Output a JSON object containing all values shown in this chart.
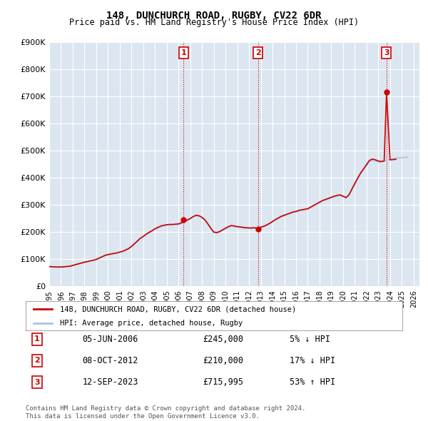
{
  "title": "148, DUNCHURCH ROAD, RUGBY, CV22 6DR",
  "subtitle": "Price paid vs. HM Land Registry's House Price Index (HPI)",
  "ylabel_ticks": [
    "£0",
    "£100K",
    "£200K",
    "£300K",
    "£400K",
    "£500K",
    "£600K",
    "£700K",
    "£800K",
    "£900K"
  ],
  "ylim": [
    0,
    900000
  ],
  "xlim_start": 1995.0,
  "xlim_end": 2026.5,
  "background_color": "#ffffff",
  "plot_bg_color": "#dce6f0",
  "grid_color": "#ffffff",
  "hpi_color": "#a8c4e0",
  "price_color": "#cc0000",
  "transaction_color": "#cc0000",
  "vline_color": "#cc0000",
  "legend_label_price": "148, DUNCHURCH ROAD, RUGBY, CV22 6DR (detached house)",
  "legend_label_hpi": "HPI: Average price, detached house, Rugby",
  "transactions": [
    {
      "num": 1,
      "date_x": 2006.43,
      "price": 245000,
      "label": "05-JUN-2006",
      "amount": "£245,000",
      "pct": "5% ↓ HPI"
    },
    {
      "num": 2,
      "date_x": 2012.77,
      "price": 210000,
      "label": "08-OCT-2012",
      "amount": "£210,000",
      "pct": "17% ↓ HPI"
    },
    {
      "num": 3,
      "date_x": 2023.7,
      "price": 715995,
      "label": "12-SEP-2023",
      "amount": "£715,995",
      "pct": "53% ↑ HPI"
    }
  ],
  "footnote1": "Contains HM Land Registry data © Crown copyright and database right 2024.",
  "footnote2": "This data is licensed under the Open Government Licence v3.0.",
  "hpi_data_x": [
    1995.0,
    1995.25,
    1995.5,
    1995.75,
    1996.0,
    1996.25,
    1996.5,
    1996.75,
    1997.0,
    1997.25,
    1997.5,
    1997.75,
    1998.0,
    1998.25,
    1998.5,
    1998.75,
    1999.0,
    1999.25,
    1999.5,
    1999.75,
    2000.0,
    2000.25,
    2000.5,
    2000.75,
    2001.0,
    2001.25,
    2001.5,
    2001.75,
    2002.0,
    2002.25,
    2002.5,
    2002.75,
    2003.0,
    2003.25,
    2003.5,
    2003.75,
    2004.0,
    2004.25,
    2004.5,
    2004.75,
    2005.0,
    2005.25,
    2005.5,
    2005.75,
    2006.0,
    2006.25,
    2006.5,
    2006.75,
    2007.0,
    2007.25,
    2007.5,
    2007.75,
    2008.0,
    2008.25,
    2008.5,
    2008.75,
    2009.0,
    2009.25,
    2009.5,
    2009.75,
    2010.0,
    2010.25,
    2010.5,
    2010.75,
    2011.0,
    2011.25,
    2011.5,
    2011.75,
    2012.0,
    2012.25,
    2012.5,
    2012.75,
    2013.0,
    2013.25,
    2013.5,
    2013.75,
    2014.0,
    2014.25,
    2014.5,
    2014.75,
    2015.0,
    2015.25,
    2015.5,
    2015.75,
    2016.0,
    2016.25,
    2016.5,
    2016.75,
    2017.0,
    2017.25,
    2017.5,
    2017.75,
    2018.0,
    2018.25,
    2018.5,
    2018.75,
    2019.0,
    2019.25,
    2019.5,
    2019.75,
    2020.0,
    2020.25,
    2020.5,
    2020.75,
    2021.0,
    2021.25,
    2021.5,
    2021.75,
    2022.0,
    2022.25,
    2022.5,
    2022.75,
    2023.0,
    2023.25,
    2023.5,
    2023.75,
    2024.0,
    2024.25,
    2024.5,
    2024.75,
    2025.0,
    2025.25,
    2025.5
  ],
  "hpi_data_y": [
    72000,
    71000,
    70500,
    70000,
    70500,
    71000,
    72000,
    73000,
    76000,
    79000,
    82000,
    85000,
    88000,
    90000,
    93000,
    95000,
    98000,
    103000,
    108000,
    113000,
    116000,
    118000,
    120000,
    122000,
    125000,
    128000,
    133000,
    138000,
    145000,
    155000,
    165000,
    175000,
    182000,
    190000,
    197000,
    203000,
    210000,
    215000,
    220000,
    223000,
    225000,
    226000,
    226000,
    227000,
    228000,
    232000,
    237000,
    242000,
    248000,
    255000,
    260000,
    258000,
    252000,
    243000,
    228000,
    212000,
    198000,
    196000,
    200000,
    206000,
    212000,
    218000,
    222000,
    220000,
    218000,
    217000,
    215000,
    214000,
    213000,
    213000,
    214000,
    215000,
    216000,
    219000,
    224000,
    230000,
    237000,
    244000,
    250000,
    256000,
    260000,
    264000,
    268000,
    272000,
    274000,
    278000,
    280000,
    282000,
    284000,
    290000,
    296000,
    302000,
    308000,
    314000,
    318000,
    322000,
    326000,
    330000,
    333000,
    335000,
    330000,
    325000,
    335000,
    355000,
    375000,
    395000,
    415000,
    430000,
    445000,
    460000,
    465000,
    462000,
    458000,
    458000,
    462000,
    465000,
    468000,
    470000,
    472000,
    473000,
    474000,
    475000,
    476000
  ],
  "price_data_x": [
    1995.0,
    1995.25,
    1995.5,
    1995.75,
    1996.0,
    1996.25,
    1996.5,
    1996.75,
    1997.0,
    1997.25,
    1997.5,
    1997.75,
    1998.0,
    1998.25,
    1998.5,
    1998.75,
    1999.0,
    1999.25,
    1999.5,
    1999.75,
    2000.0,
    2000.25,
    2000.5,
    2000.75,
    2001.0,
    2001.25,
    2001.5,
    2001.75,
    2002.0,
    2002.25,
    2002.5,
    2002.75,
    2003.0,
    2003.25,
    2003.5,
    2003.75,
    2004.0,
    2004.25,
    2004.5,
    2004.75,
    2005.0,
    2005.25,
    2005.5,
    2005.75,
    2006.0,
    2006.25,
    2006.5,
    2006.43,
    2006.75,
    2007.0,
    2007.25,
    2007.5,
    2007.75,
    2008.0,
    2008.25,
    2008.5,
    2008.75,
    2009.0,
    2009.25,
    2009.5,
    2009.75,
    2010.0,
    2010.25,
    2010.5,
    2010.75,
    2011.0,
    2011.25,
    2011.5,
    2011.75,
    2012.0,
    2012.25,
    2012.5,
    2012.77,
    2013.0,
    2013.25,
    2013.5,
    2013.75,
    2014.0,
    2014.25,
    2014.5,
    2014.75,
    2015.0,
    2015.25,
    2015.5,
    2015.75,
    2016.0,
    2016.25,
    2016.5,
    2016.75,
    2017.0,
    2017.25,
    2017.5,
    2017.75,
    2018.0,
    2018.25,
    2018.5,
    2018.75,
    2019.0,
    2019.25,
    2019.5,
    2019.75,
    2020.0,
    2020.25,
    2020.5,
    2020.75,
    2021.0,
    2021.25,
    2021.5,
    2021.75,
    2022.0,
    2022.25,
    2022.5,
    2022.75,
    2023.0,
    2023.25,
    2023.5,
    2023.7,
    2024.0,
    2024.25,
    2024.5
  ],
  "price_data_y": [
    73000,
    72000,
    71500,
    71000,
    71500,
    72000,
    73000,
    74000,
    77000,
    80000,
    83000,
    86000,
    89000,
    91000,
    94000,
    96000,
    99000,
    104000,
    109000,
    114000,
    117000,
    119000,
    121000,
    123000,
    126000,
    129000,
    134000,
    139000,
    147000,
    157000,
    167000,
    177000,
    184000,
    192000,
    199000,
    205000,
    212000,
    217000,
    222000,
    225000,
    227000,
    228000,
    228000,
    229000,
    230000,
    234000,
    239000,
    245000,
    244000,
    250000,
    257000,
    262000,
    260000,
    254000,
    245000,
    230000,
    214000,
    200000,
    198000,
    202000,
    208000,
    214000,
    220000,
    224000,
    222000,
    220000,
    219000,
    217000,
    216000,
    215000,
    215000,
    216000,
    210000,
    218000,
    221000,
    226000,
    232000,
    239000,
    246000,
    252000,
    258000,
    262000,
    266000,
    270000,
    274000,
    276000,
    280000,
    282000,
    284000,
    286000,
    292000,
    298000,
    304000,
    310000,
    316000,
    320000,
    324000,
    328000,
    332000,
    335000,
    337000,
    332000,
    327000,
    337000,
    358000,
    379000,
    399000,
    418000,
    433000,
    449000,
    464000,
    469000,
    466000,
    462000,
    460000,
    462000,
    715995,
    466000,
    467000,
    468000
  ]
}
